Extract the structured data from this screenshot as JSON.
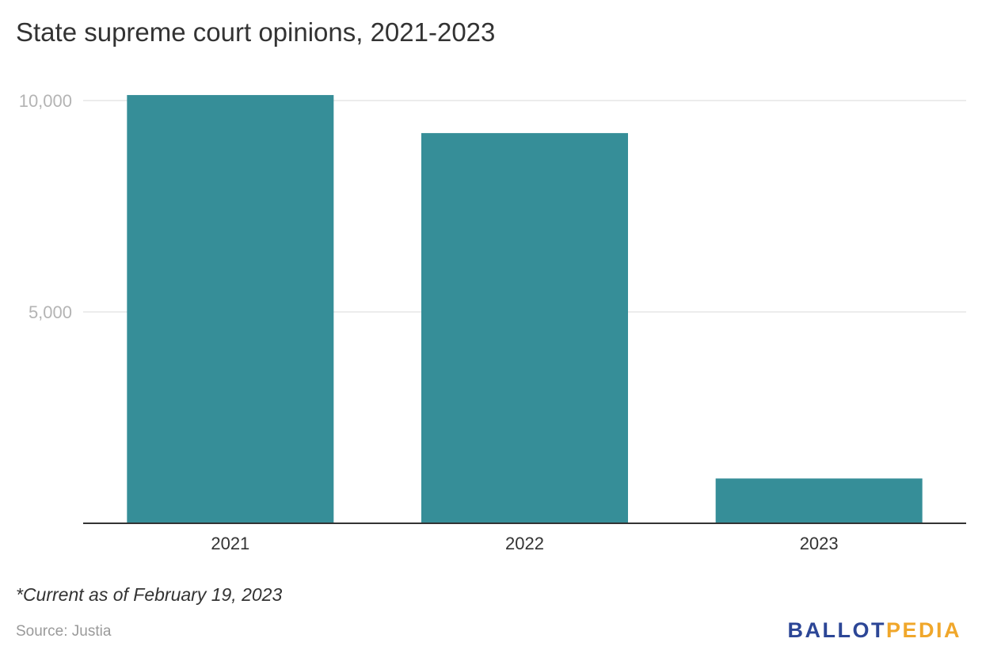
{
  "title": "State supreme court opinions, 2021-2023",
  "note": "*Current as of February 19, 2023",
  "source": "Source: Justia",
  "logo": {
    "part1": "BALLOT",
    "part2": "PEDIA",
    "color1": "#2c4696",
    "color2": "#f0a72b"
  },
  "chart_data": {
    "type": "bar",
    "title": "State supreme court opinions, 2021-2023",
    "xlabel": "",
    "ylabel": "",
    "categories": [
      "2021",
      "2022",
      "2023"
    ],
    "values": [
      10130,
      9230,
      1060
    ],
    "ylim": [
      0,
      10000
    ],
    "yticks": [
      5000,
      10000
    ],
    "ytick_labels": [
      "5,000",
      "10,000"
    ],
    "grid": true,
    "bar_color": "#368e98",
    "gridline_color": "#e6e6e6",
    "axis_color": "#333333"
  }
}
